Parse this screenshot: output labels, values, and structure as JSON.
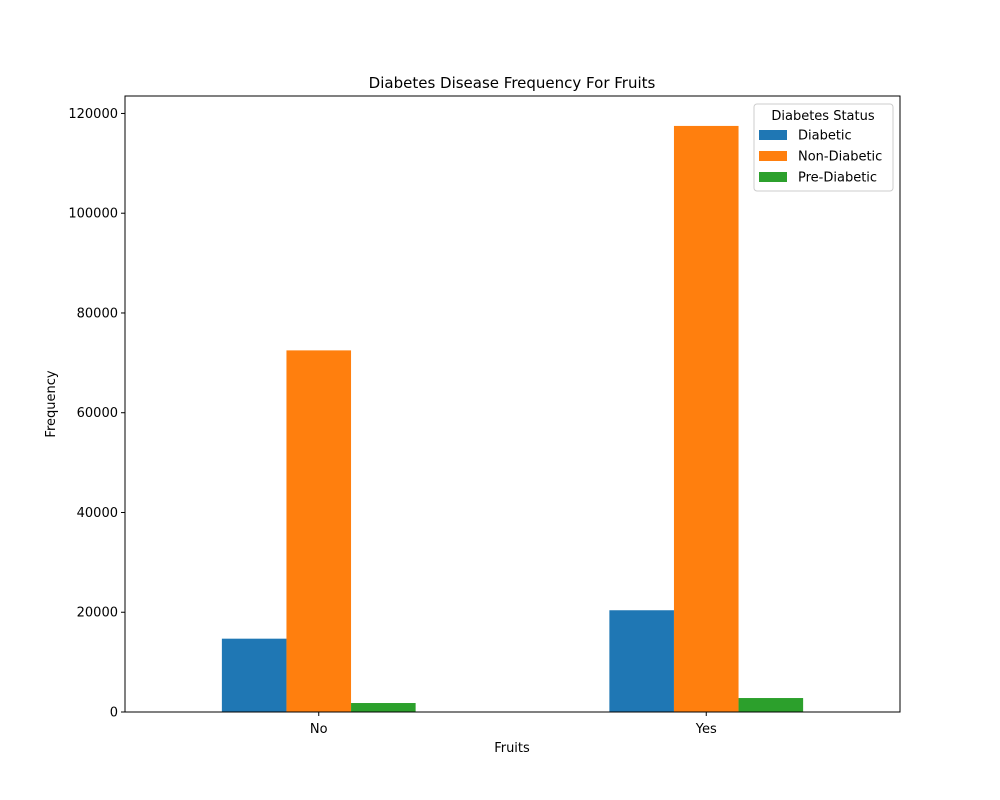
{
  "chart_data": {
    "type": "bar",
    "title": "Diabetes Disease Frequency For Fruits",
    "xlabel": "Fruits",
    "ylabel": "Frequency",
    "categories": [
      "No",
      "Yes"
    ],
    "series": [
      {
        "name": "Diabetic",
        "values": [
          14700,
          20400
        ],
        "color": "#1f77b4"
      },
      {
        "name": "Non-Diabetic",
        "values": [
          72500,
          117500
        ],
        "color": "#ff7f0e"
      },
      {
        "name": "Pre-Diabetic",
        "values": [
          1800,
          2800
        ],
        "color": "#2ca02c"
      }
    ],
    "ylim": [
      0,
      123500
    ],
    "yticks": [
      0,
      20000,
      40000,
      60000,
      80000,
      100000,
      120000
    ],
    "ytick_labels": [
      "0",
      "20000",
      "40000",
      "60000",
      "80000",
      "100000",
      "120000"
    ],
    "legend": {
      "title": "Diabetes Status",
      "placement": "top-right"
    },
    "grid": false
  }
}
